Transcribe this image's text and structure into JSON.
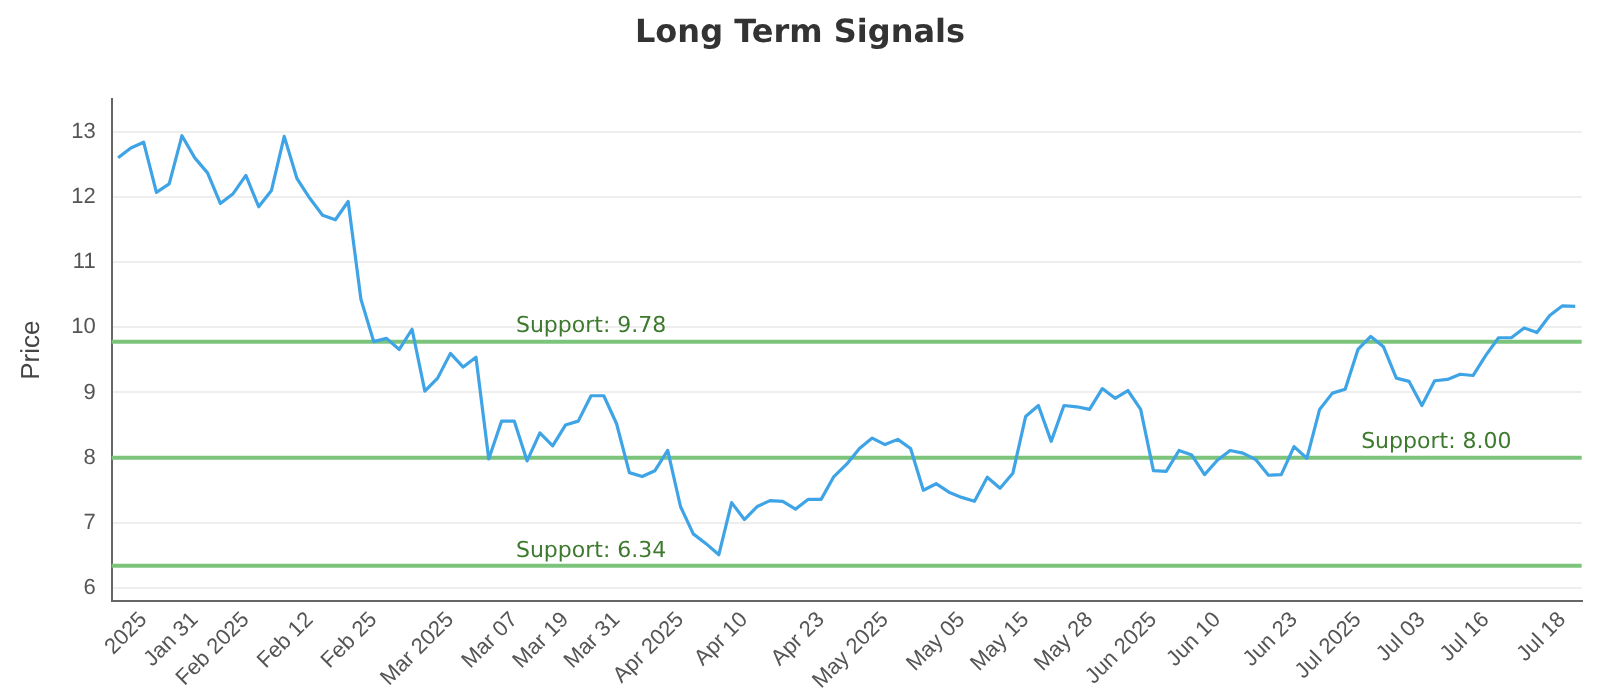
{
  "chart_data": {
    "type": "line",
    "title": "Long Term Signals",
    "ylabel": "Price",
    "categories": [
      null,
      null,
      "2025",
      null,
      null,
      null,
      "Jan 31",
      null,
      null,
      null,
      "Feb 2025",
      null,
      null,
      null,
      null,
      "Feb 12",
      null,
      null,
      null,
      null,
      "Feb 25",
      null,
      null,
      null,
      null,
      null,
      "Mar 2025",
      null,
      null,
      null,
      null,
      "Mar 07",
      null,
      null,
      null,
      "Mar 19",
      null,
      null,
      null,
      "Mar 31",
      null,
      null,
      null,
      null,
      "Apr 2025",
      null,
      null,
      null,
      null,
      "Apr 10",
      null,
      null,
      null,
      null,
      null,
      "Apr 23",
      null,
      null,
      null,
      null,
      "May 2025",
      null,
      null,
      null,
      null,
      null,
      "May 05",
      null,
      null,
      null,
      null,
      "May 15",
      null,
      null,
      null,
      null,
      "May 28",
      null,
      null,
      null,
      null,
      "Jun 2025",
      null,
      null,
      null,
      null,
      "Jun 10",
      null,
      null,
      null,
      null,
      null,
      "Jun 23",
      null,
      null,
      null,
      null,
      "Jul 2025",
      null,
      null,
      null,
      null,
      "Jul 03",
      null,
      null,
      null,
      null,
      "Jul 16",
      null,
      null,
      null,
      null,
      null,
      "Jul 18",
      null
    ],
    "series": [
      {
        "color": "#3ea4e6",
        "values": [
          12.6,
          12.75,
          12.84,
          12.07,
          12.2,
          12.94,
          12.6,
          12.37,
          11.9,
          12.05,
          12.33,
          11.85,
          12.1,
          12.93,
          12.28,
          11.98,
          11.72,
          11.65,
          11.93,
          10.43,
          9.78,
          9.83,
          9.66,
          9.97,
          9.02,
          9.22,
          9.6,
          9.39,
          9.54,
          7.98,
          8.56,
          8.56,
          7.95,
          8.38,
          8.18,
          8.5,
          8.56,
          8.95,
          8.95,
          8.52,
          7.77,
          7.71,
          7.8,
          8.11,
          7.25,
          6.83,
          6.68,
          6.51,
          7.31,
          7.05,
          7.25,
          7.34,
          7.33,
          7.21,
          7.36,
          7.36,
          7.71,
          7.9,
          8.14,
          8.3,
          8.2,
          8.28,
          8.14,
          7.5,
          7.6,
          7.47,
          7.39,
          7.33,
          7.7,
          7.53,
          7.76,
          8.63,
          8.8,
          8.25,
          8.8,
          8.78,
          8.74,
          9.06,
          8.91,
          9.03,
          8.74,
          7.8,
          7.79,
          8.11,
          8.04,
          7.74,
          7.96,
          8.11,
          8.07,
          7.97,
          7.73,
          7.74,
          8.17,
          7.99,
          8.74,
          8.99,
          9.05,
          9.66,
          9.86,
          9.7,
          9.22,
          9.17,
          8.8,
          9.18,
          9.2,
          9.28,
          9.26,
          9.57,
          9.84,
          9.84,
          9.99,
          9.92,
          10.18,
          10.33,
          10.32
        ]
      }
    ],
    "ylim": [
      5.8,
      13.5
    ],
    "yticks": [
      6,
      7,
      8,
      9,
      10,
      11,
      12,
      13
    ],
    "grid": "y",
    "legend": false,
    "marker": "none",
    "line_style": "solid",
    "ref_lines": [
      {
        "axis": "y",
        "value": 9.78,
        "label": "Support: 9.78",
        "color": "#7cc47c"
      },
      {
        "axis": "y",
        "value": 8.0,
        "label": "Support: 8.00",
        "color": "#7cc47c"
      },
      {
        "axis": "y",
        "value": 6.34,
        "label": "Support: 6.34",
        "color": "#7cc47c"
      }
    ]
  }
}
